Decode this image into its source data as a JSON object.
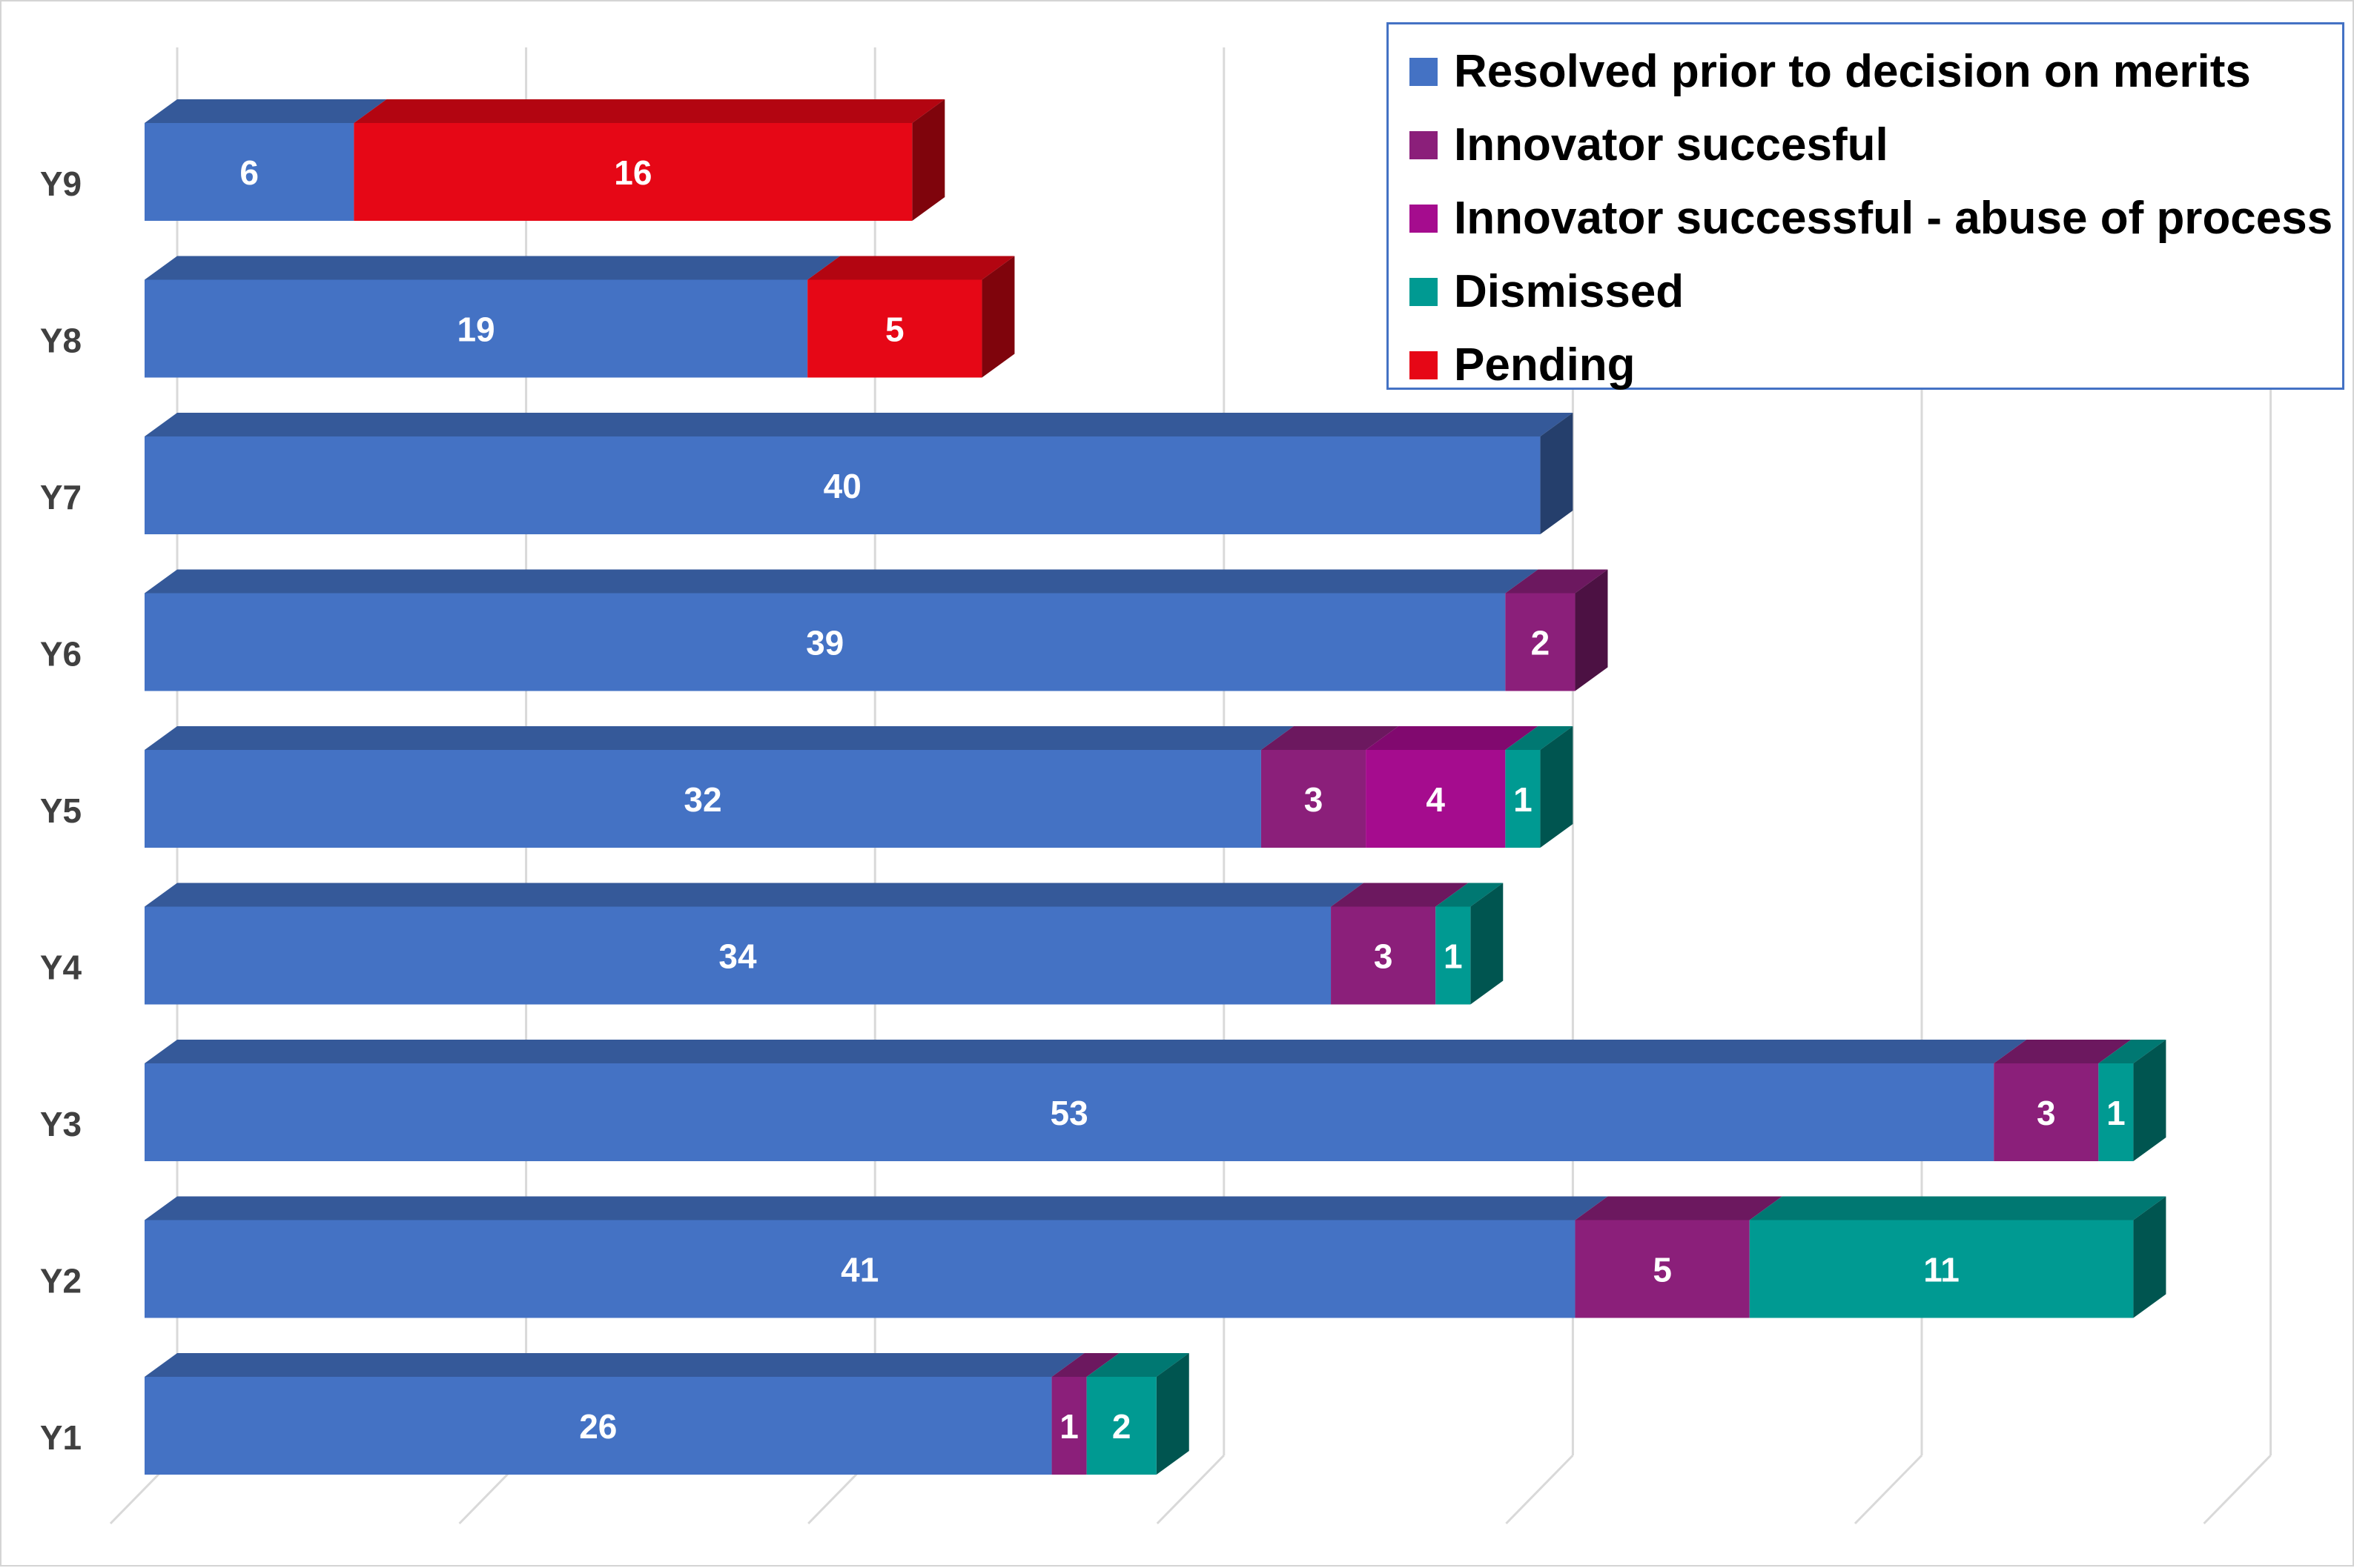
{
  "chart_data": {
    "type": "bar",
    "orientation": "horizontal",
    "stacked": true,
    "three_d": true,
    "title": "",
    "xlabel": "",
    "ylabel": "",
    "xlim": [
      0,
      60
    ],
    "gridlines": true,
    "legend_position": "top-right",
    "categories": [
      "Y9",
      "Y8",
      "Y7",
      "Y6",
      "Y5",
      "Y4",
      "Y3",
      "Y2",
      "Y1"
    ],
    "series": [
      {
        "name": "Resolved prior to decision on merits",
        "color": "#4472c4",
        "values": [
          6,
          19,
          40,
          39,
          32,
          34,
          53,
          41,
          26
        ]
      },
      {
        "name": "Innovator succesful",
        "color": "#8b1f7a",
        "values": [
          null,
          null,
          null,
          2,
          3,
          3,
          3,
          5,
          1
        ]
      },
      {
        "name": "Innovator successful - abuse of process",
        "color": "#a50c8e",
        "values": [
          null,
          null,
          null,
          null,
          4,
          null,
          null,
          null,
          null
        ]
      },
      {
        "name": "Dismissed",
        "color": "#009a92",
        "values": [
          null,
          null,
          null,
          null,
          1,
          1,
          1,
          11,
          2
        ]
      },
      {
        "name": "Pending",
        "color": "#e60716",
        "values": [
          16,
          5,
          null,
          null,
          null,
          null,
          null,
          null,
          null
        ]
      }
    ]
  }
}
